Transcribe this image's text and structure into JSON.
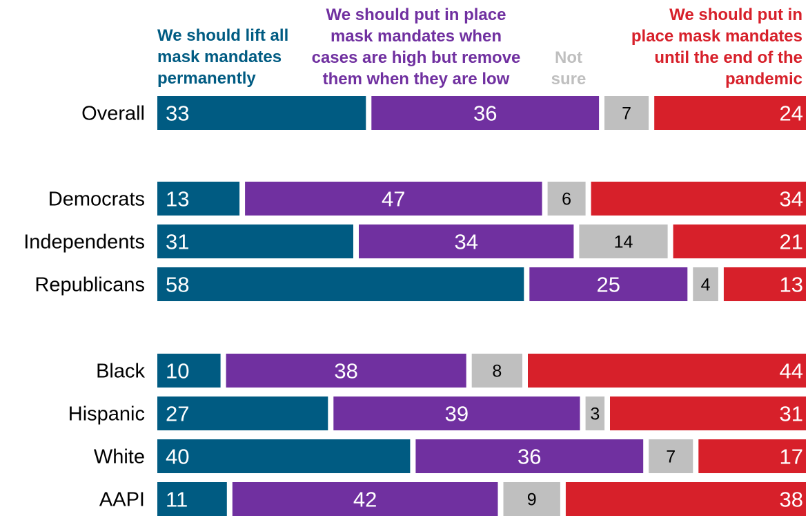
{
  "chart_data": {
    "type": "bar",
    "orientation": "horizontal",
    "stacked": true,
    "categories": [
      "Overall",
      "Democrats",
      "Independents",
      "Republicans",
      "Black",
      "Hispanic",
      "White",
      "AAPI"
    ],
    "groups": [
      [
        "Overall"
      ],
      [
        "Democrats",
        "Independents",
        "Republicans"
      ],
      [
        "Black",
        "Hispanic",
        "White",
        "AAPI"
      ]
    ],
    "series": [
      {
        "name": "We should lift all mask mandates permanently",
        "color": "#005B82",
        "values": [
          33,
          13,
          31,
          58,
          10,
          27,
          40,
          11
        ]
      },
      {
        "name": "We should put in place mask mandates when cases are high but remove them when they are low",
        "color": "#7030A0",
        "values": [
          36,
          47,
          34,
          25,
          38,
          39,
          36,
          42
        ]
      },
      {
        "name": "Not sure",
        "color": "#BFBFBF",
        "values": [
          7,
          6,
          14,
          4,
          8,
          3,
          7,
          9
        ]
      },
      {
        "name": "We should put in place mask mandates until the end of the pandemic",
        "color": "#D7202A",
        "values": [
          24,
          34,
          21,
          13,
          44,
          31,
          17,
          38
        ]
      }
    ],
    "legend": {
      "lines": [
        "We should lift all\nmask mandates\npermanently",
        "We should put in place\nmask mandates when\ncases are high but remove\nthem when they are low",
        "Not\nsure",
        "We should put in\nplace mask mandates\nuntil the end of the\npandemic"
      ],
      "placement": "top"
    },
    "xlim": [
      0,
      100
    ],
    "grid": false,
    "data_labels": true
  }
}
